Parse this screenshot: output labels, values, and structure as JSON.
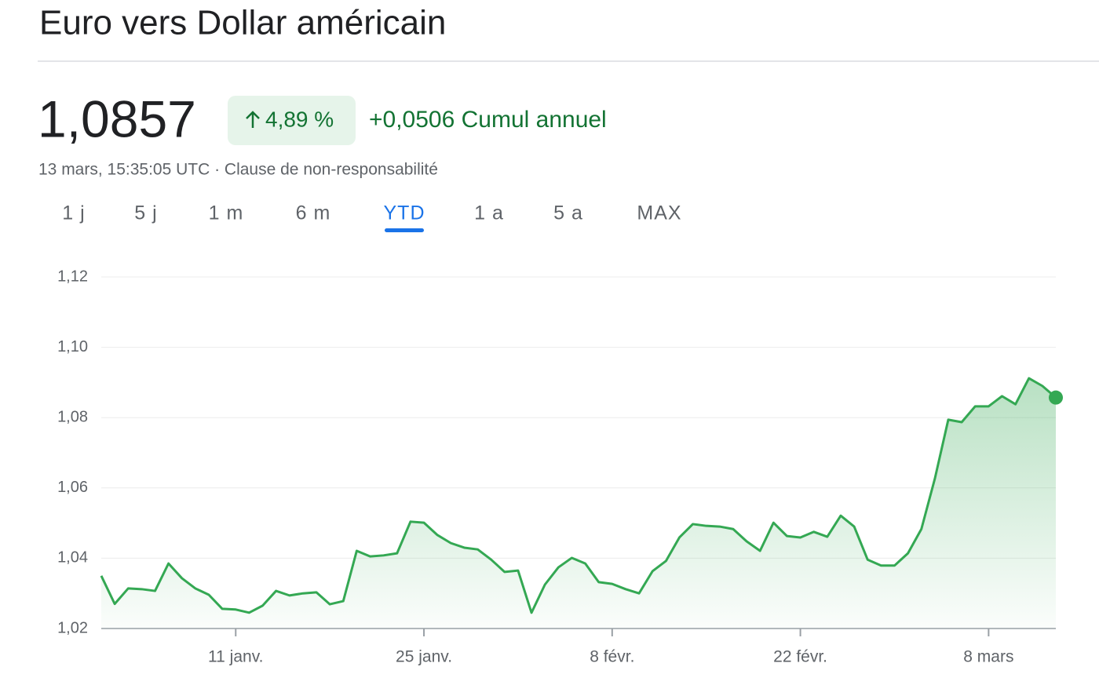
{
  "header": {
    "title": "Euro vers Dollar américain"
  },
  "quote": {
    "price": "1,0857",
    "change_percent": "4,89 %",
    "change": "+0,0506 Cumul annuel",
    "timestamp": "13 mars, 15:35:05 UTC · Clause de non-responsabilité"
  },
  "tabs": [
    "1 j",
    "5 j",
    "1 m",
    "6 m",
    "YTD",
    "1 a",
    "5 a",
    "MAX"
  ],
  "selected_tab_index": 4,
  "chart_data": {
    "type": "line",
    "color": "#34a853",
    "grid": true,
    "x": [
      1,
      2,
      3,
      4,
      5,
      6,
      7,
      8,
      9,
      10,
      11,
      12,
      13,
      14,
      15,
      16,
      17,
      18,
      19,
      20,
      21,
      22,
      23,
      24,
      25,
      26,
      27,
      28,
      29,
      30,
      31,
      32,
      33,
      34,
      35,
      36,
      37,
      38,
      39,
      40,
      41,
      42,
      43,
      44,
      45,
      46,
      47,
      48,
      49,
      50,
      51,
      52,
      53,
      54,
      55,
      56,
      57,
      58,
      59,
      60,
      61,
      62,
      63,
      64,
      65,
      66,
      67,
      68,
      69,
      70,
      71,
      72
    ],
    "values": [
      1.035,
      1.027,
      1.0314,
      1.0312,
      1.0307,
      1.0385,
      1.0343,
      1.0314,
      1.0296,
      1.0256,
      1.0254,
      1.0245,
      1.0265,
      1.0307,
      1.0294,
      1.03,
      1.0303,
      1.0269,
      1.0278,
      1.0421,
      1.0405,
      1.0408,
      1.0414,
      1.0504,
      1.0501,
      1.0466,
      1.0443,
      1.043,
      1.0425,
      1.0396,
      1.0361,
      1.0365,
      1.0245,
      1.0325,
      1.0374,
      1.0401,
      1.0385,
      1.0332,
      1.0327,
      1.0312,
      1.03,
      1.0363,
      1.0392,
      1.0459,
      1.0497,
      1.0492,
      1.049,
      1.0483,
      1.0448,
      1.0421,
      1.0501,
      1.0463,
      1.0459,
      1.0475,
      1.0461,
      1.0521,
      1.049,
      1.0396,
      1.0379,
      1.0379,
      1.0414,
      1.0483,
      1.0626,
      1.0794,
      1.0787,
      1.0832,
      1.0832,
      1.0861,
      1.0838,
      1.0912,
      1.089,
      1.0857
    ],
    "xlim": [
      1,
      72
    ],
    "xticks": [
      {
        "value": 11,
        "label": "11 janv."
      },
      {
        "value": 25,
        "label": "25 janv."
      },
      {
        "value": 39,
        "label": "8 févr."
      },
      {
        "value": 53,
        "label": "22 févr."
      },
      {
        "value": 67,
        "label": "8 mars"
      }
    ],
    "ylim": [
      1.02,
      1.12
    ],
    "yticks": [
      {
        "value": 1.02,
        "label": "1,02"
      },
      {
        "value": 1.04,
        "label": "1,04"
      },
      {
        "value": 1.06,
        "label": "1,06"
      },
      {
        "value": 1.08,
        "label": "1,08"
      },
      {
        "value": 1.1,
        "label": "1,10"
      },
      {
        "value": 1.12,
        "label": "1,12"
      }
    ]
  }
}
